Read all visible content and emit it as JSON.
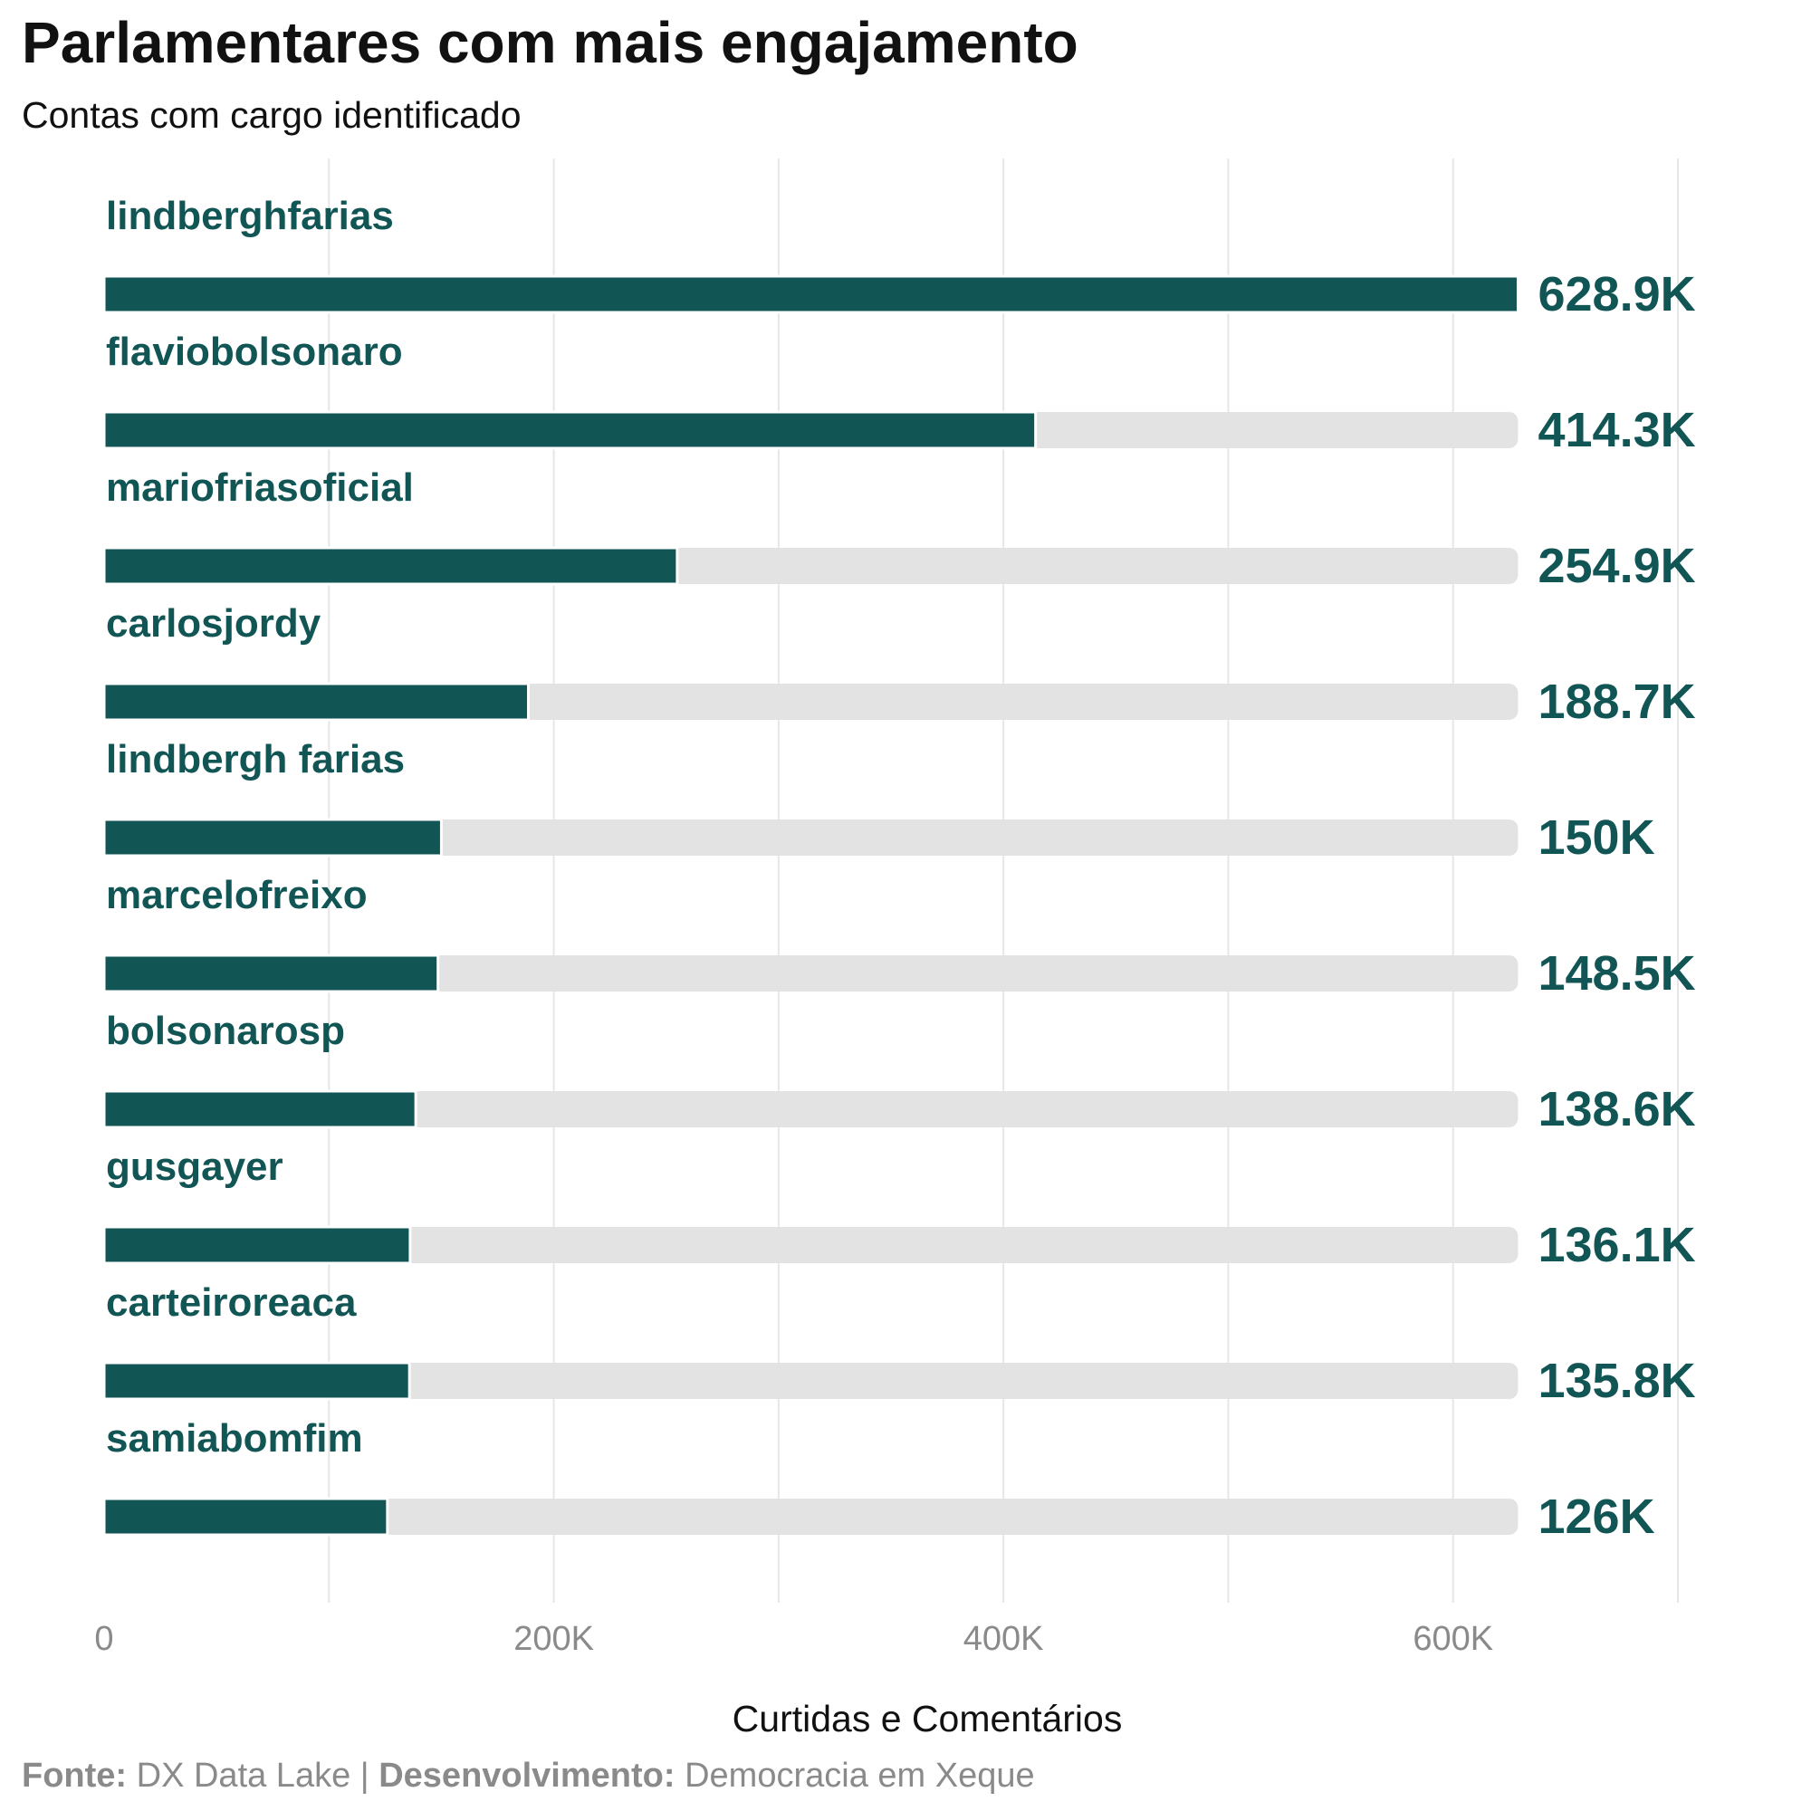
{
  "chart_data": {
    "type": "bar",
    "orientation": "horizontal",
    "title": "Parlamentares com mais engajamento",
    "subtitle": "Contas com cargo identificado",
    "xlabel": "Curtidas e Comentários",
    "ylabel": "",
    "xlim": [
      0,
      700000
    ],
    "xticks": [
      0,
      200000,
      400000,
      600000
    ],
    "xtick_labels": [
      "0",
      "200K",
      "400K",
      "600K"
    ],
    "grid": true,
    "background_max": 628900,
    "categories": [
      "lindberghfarias",
      "flaviobolsonaro",
      "mariofriasoficial",
      "carlosjordy",
      "lindbergh farias",
      "marcelofreixo",
      "bolsonarosp",
      "gusgayer",
      "carteiroreaca",
      "samiabomfim"
    ],
    "values": [
      628900,
      414300,
      254900,
      188700,
      150000,
      148500,
      138600,
      136100,
      135800,
      126000
    ],
    "value_labels": [
      "628.9K",
      "414.3K",
      "254.9K",
      "188.7K",
      "150K",
      "148.5K",
      "138.6K",
      "136.1K",
      "135.8K",
      "126K"
    ],
    "colors": {
      "bar": "#115555",
      "track": "#e3e3e3",
      "grid": "#e6e6e6",
      "tick": "#8a8a8a",
      "label": "#115555"
    }
  },
  "caption": {
    "source_label": "Fonte:",
    "source_value": "DX Data Lake",
    "separator": "|",
    "dev_label": "Desenvolvimento:",
    "dev_value": "Democracia em Xeque"
  }
}
